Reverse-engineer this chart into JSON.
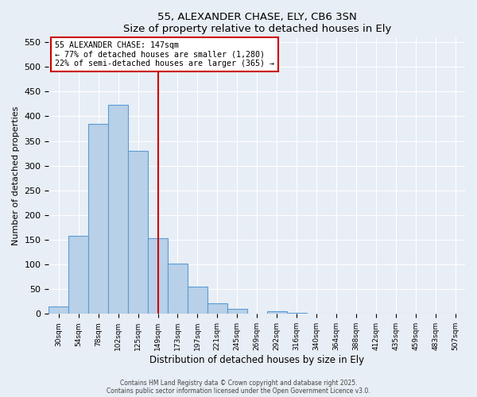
{
  "title": "55, ALEXANDER CHASE, ELY, CB6 3SN",
  "subtitle": "Size of property relative to detached houses in Ely",
  "xlabel": "Distribution of detached houses by size in Ely",
  "ylabel": "Number of detached properties",
  "bar_labels": [
    "30sqm",
    "54sqm",
    "78sqm",
    "102sqm",
    "125sqm",
    "149sqm",
    "173sqm",
    "197sqm",
    "221sqm",
    "245sqm",
    "269sqm",
    "292sqm",
    "316sqm",
    "340sqm",
    "364sqm",
    "388sqm",
    "412sqm",
    "435sqm",
    "459sqm",
    "483sqm",
    "507sqm"
  ],
  "bar_values": [
    15,
    158,
    385,
    424,
    330,
    153,
    102,
    55,
    22,
    10,
    0,
    5,
    2,
    0,
    0,
    0,
    0,
    0,
    0,
    0,
    0
  ],
  "bar_color": "#b8d0e8",
  "bar_edge_color": "#5b9bd5",
  "vline_x_index": 5,
  "vline_color": "#cc0000",
  "annotation_title": "55 ALEXANDER CHASE: 147sqm",
  "annotation_line1": "← 77% of detached houses are smaller (1,280)",
  "annotation_line2": "22% of semi-detached houses are larger (365) →",
  "ylim": [
    0,
    560
  ],
  "yticks": [
    0,
    50,
    100,
    150,
    200,
    250,
    300,
    350,
    400,
    450,
    500,
    550
  ],
  "bg_color": "#e8eef5",
  "plot_bg_color": "#e8eef5",
  "grid_color": "#ffffff",
  "footer1": "Contains HM Land Registry data © Crown copyright and database right 2025.",
  "footer2": "Contains public sector information licensed under the Open Government Licence v3.0."
}
